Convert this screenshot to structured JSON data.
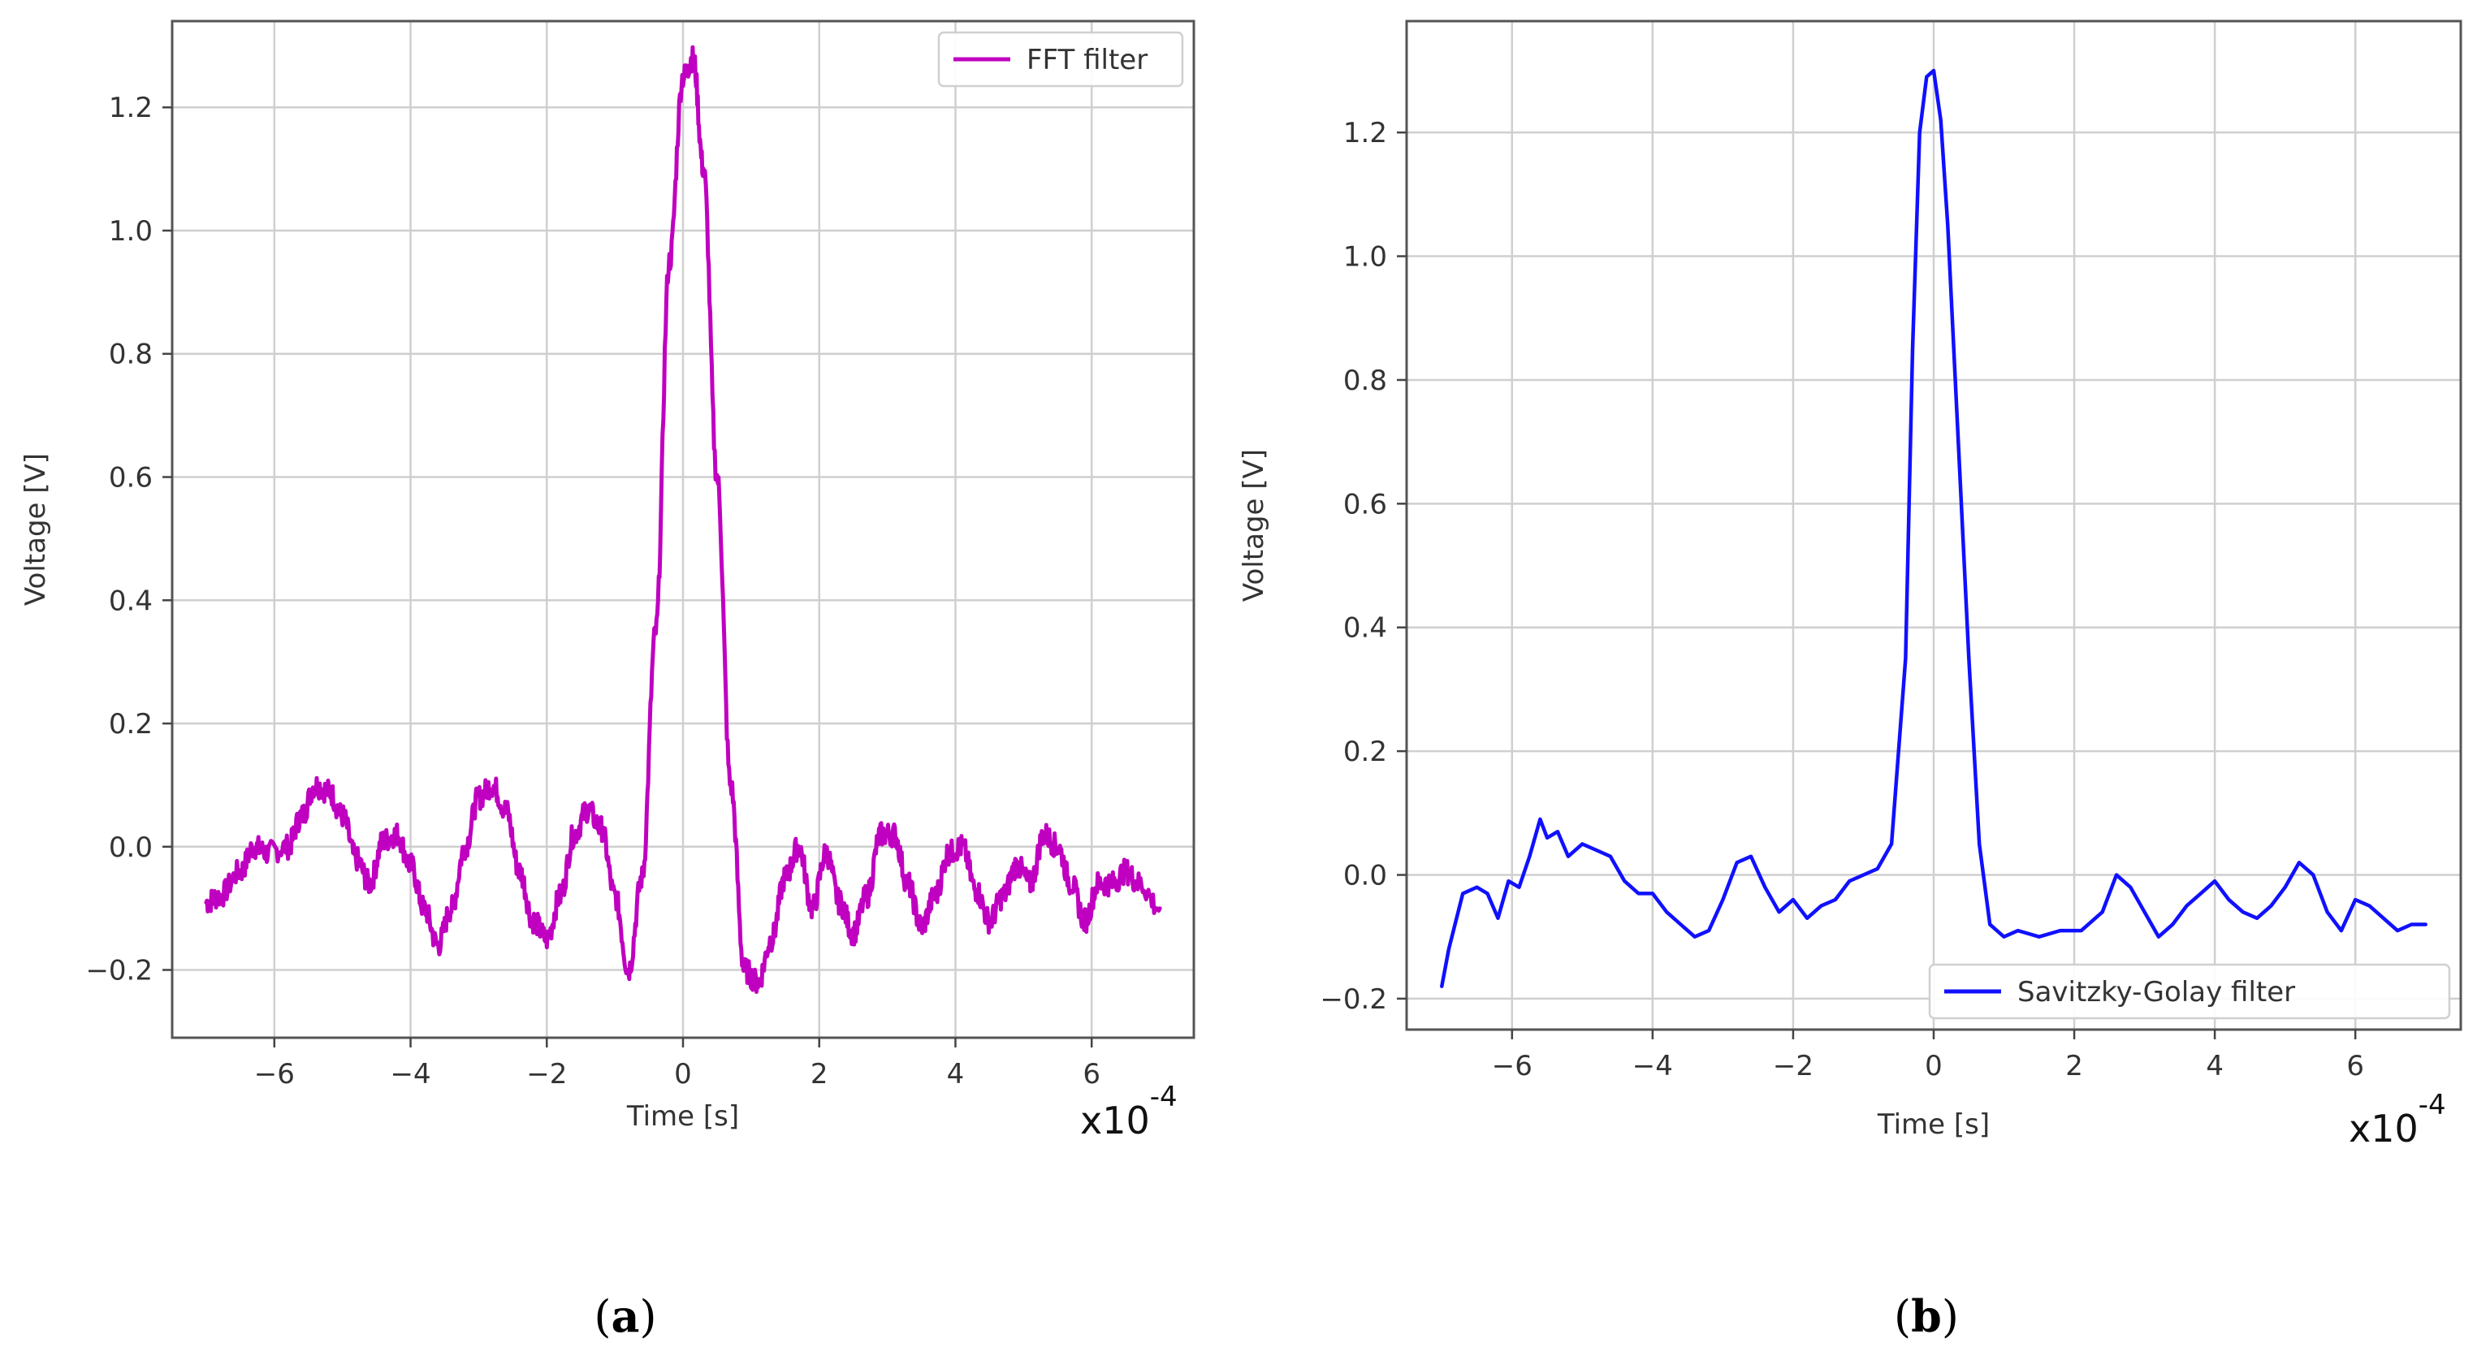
{
  "panels": [
    {
      "prefix": "(",
      "letter": "a",
      "suffix": ")"
    },
    {
      "prefix": "(",
      "letter": "b",
      "suffix": ")"
    }
  ],
  "chart_data": [
    {
      "type": "line",
      "title": "",
      "xlabel": "Time [s]",
      "ylabel": "Voltage [V]",
      "x_multiplier_base": "x10",
      "x_multiplier_exp": "-4",
      "xlim": [
        -7.5,
        7.5
      ],
      "ylim": [
        -0.31,
        1.34
      ],
      "xticks": [
        -6,
        -4,
        -2,
        0,
        2,
        4,
        6
      ],
      "xtick_labels": [
        "−6",
        "−4",
        "−2",
        "0",
        "2",
        "4",
        "6"
      ],
      "yticks": [
        -0.2,
        0.0,
        0.2,
        0.4,
        0.6,
        0.8,
        1.0,
        1.2
      ],
      "ytick_labels": [
        "−0.2",
        "0.0",
        "0.2",
        "0.4",
        "0.6",
        "0.8",
        "1.0",
        "1.2"
      ],
      "grid": true,
      "legend_position": "top-right",
      "series": [
        {
          "name": "FFT filter",
          "color": "#c000c0",
          "noisy": true,
          "x": [
            -7.0,
            -6.8,
            -6.5,
            -6.3,
            -6.1,
            -5.8,
            -5.6,
            -5.4,
            -5.2,
            -5.0,
            -4.8,
            -4.6,
            -4.4,
            -4.2,
            -4.0,
            -3.8,
            -3.6,
            -3.4,
            -3.2,
            -3.0,
            -2.8,
            -2.6,
            -2.4,
            -2.2,
            -2.0,
            -1.8,
            -1.6,
            -1.4,
            -1.2,
            -1.0,
            -0.8,
            -0.6,
            -0.4,
            -0.2,
            0.0,
            0.15,
            0.3,
            0.5,
            0.7,
            0.9,
            1.1,
            1.3,
            1.5,
            1.7,
            1.9,
            2.1,
            2.3,
            2.5,
            2.7,
            2.9,
            3.1,
            3.3,
            3.5,
            3.7,
            3.9,
            4.1,
            4.3,
            4.5,
            4.7,
            4.9,
            5.1,
            5.3,
            5.5,
            5.7,
            5.9,
            6.1,
            6.3,
            6.5,
            6.7,
            7.0
          ],
          "y": [
            -0.09,
            -0.08,
            -0.04,
            0.0,
            -0.01,
            0.0,
            0.05,
            0.1,
            0.09,
            0.05,
            -0.02,
            -0.06,
            0.01,
            0.02,
            -0.03,
            -0.1,
            -0.16,
            -0.1,
            0.0,
            0.08,
            0.1,
            0.06,
            -0.04,
            -0.12,
            -0.15,
            -0.08,
            0.02,
            0.06,
            0.03,
            -0.08,
            -0.2,
            -0.05,
            0.35,
            0.95,
            1.25,
            1.28,
            1.1,
            0.6,
            0.1,
            -0.2,
            -0.22,
            -0.15,
            -0.05,
            0.0,
            -0.1,
            -0.01,
            -0.09,
            -0.14,
            -0.08,
            0.02,
            0.02,
            -0.06,
            -0.13,
            -0.08,
            -0.01,
            0.0,
            -0.07,
            -0.12,
            -0.08,
            -0.03,
            -0.06,
            0.02,
            0.0,
            -0.06,
            -0.12,
            -0.06,
            -0.06,
            -0.04,
            -0.06,
            -0.1
          ]
        }
      ]
    },
    {
      "type": "line",
      "title": "",
      "xlabel": "Time [s]",
      "ylabel": "Voltage [V]",
      "x_multiplier_base": "x10",
      "x_multiplier_exp": "-4",
      "xlim": [
        -7.5,
        7.5
      ],
      "ylim": [
        -0.25,
        1.38
      ],
      "xticks": [
        -6,
        -4,
        -2,
        0,
        2,
        4,
        6
      ],
      "xtick_labels": [
        "−6",
        "−4",
        "−2",
        "0",
        "2",
        "4",
        "6"
      ],
      "yticks": [
        -0.2,
        0.0,
        0.2,
        0.4,
        0.6,
        0.8,
        1.0,
        1.2
      ],
      "ytick_labels": [
        "−0.2",
        "0.0",
        "0.2",
        "0.4",
        "0.6",
        "0.8",
        "1.0",
        "1.2"
      ],
      "grid": true,
      "legend_position": "bottom-right",
      "series": [
        {
          "name": "Savitzky-Golay filter",
          "color": "#1010ff",
          "noisy": false,
          "x": [
            -7.0,
            -6.9,
            -6.7,
            -6.5,
            -6.35,
            -6.2,
            -6.05,
            -5.9,
            -5.75,
            -5.6,
            -5.5,
            -5.35,
            -5.2,
            -5.0,
            -4.8,
            -4.6,
            -4.4,
            -4.2,
            -4.0,
            -3.8,
            -3.6,
            -3.4,
            -3.2,
            -3.0,
            -2.8,
            -2.6,
            -2.4,
            -2.2,
            -2.0,
            -1.8,
            -1.6,
            -1.4,
            -1.2,
            -1.0,
            -0.8,
            -0.6,
            -0.4,
            -0.3,
            -0.2,
            -0.1,
            0.0,
            0.1,
            0.2,
            0.35,
            0.5,
            0.65,
            0.8,
            1.0,
            1.2,
            1.5,
            1.8,
            2.1,
            2.4,
            2.6,
            2.8,
            3.0,
            3.2,
            3.4,
            3.6,
            3.8,
            4.0,
            4.2,
            4.4,
            4.6,
            4.8,
            5.0,
            5.2,
            5.4,
            5.6,
            5.8,
            6.0,
            6.2,
            6.4,
            6.6,
            6.8,
            7.0
          ],
          "y": [
            -0.18,
            -0.12,
            -0.03,
            -0.02,
            -0.03,
            -0.07,
            -0.01,
            -0.02,
            0.03,
            0.09,
            0.06,
            0.07,
            0.03,
            0.05,
            0.04,
            0.03,
            -0.01,
            -0.03,
            -0.03,
            -0.06,
            -0.08,
            -0.1,
            -0.09,
            -0.04,
            0.02,
            0.03,
            -0.02,
            -0.06,
            -0.04,
            -0.07,
            -0.05,
            -0.04,
            -0.01,
            0.0,
            0.01,
            0.05,
            0.35,
            0.85,
            1.2,
            1.29,
            1.3,
            1.22,
            1.05,
            0.7,
            0.35,
            0.05,
            -0.08,
            -0.1,
            -0.09,
            -0.1,
            -0.09,
            -0.09,
            -0.06,
            0.0,
            -0.02,
            -0.06,
            -0.1,
            -0.08,
            -0.05,
            -0.03,
            -0.01,
            -0.04,
            -0.06,
            -0.07,
            -0.05,
            -0.02,
            0.02,
            0.0,
            -0.06,
            -0.09,
            -0.04,
            -0.05,
            -0.07,
            -0.09,
            -0.08,
            -0.08
          ]
        }
      ]
    }
  ]
}
